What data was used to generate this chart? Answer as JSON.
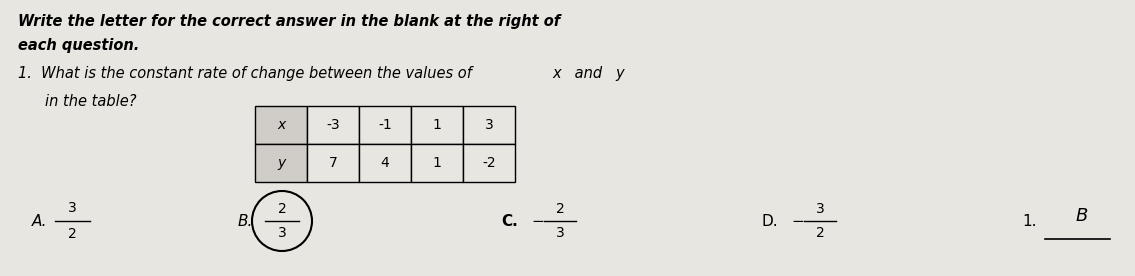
{
  "bg_color": "#e8e6e0",
  "table_x_vals": [
    "x",
    "-3",
    "-1",
    "1",
    "3"
  ],
  "table_y_vals": [
    "y",
    "7",
    "4",
    "1",
    "-2"
  ],
  "answer_label": "1.",
  "answer_value": "B",
  "circle_answer": "B"
}
